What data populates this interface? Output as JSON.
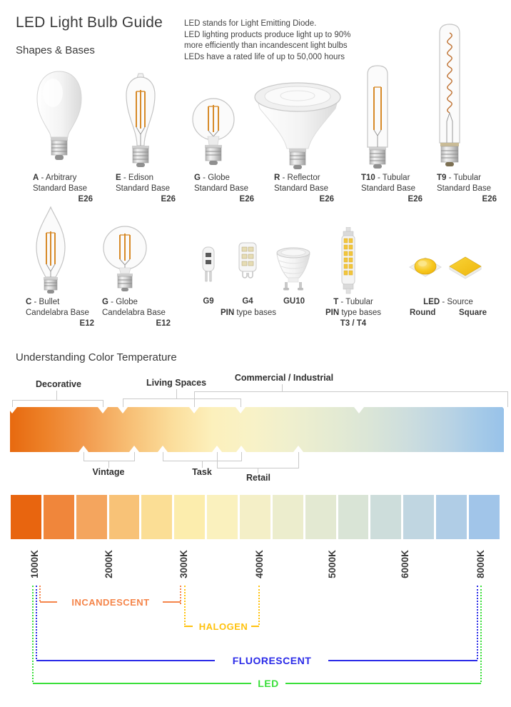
{
  "meta": {
    "sep": " - "
  },
  "header": {
    "title": "LED Light Bulb Guide",
    "subtitle": "Shapes & Bases",
    "description_lines": [
      "LED stands for Light Emitting Diode.",
      "LED lighting products produce light up to 90%",
      "more efficiently than incandescent light bulbs",
      "LEDs have a rated life of up to 50,000 hours"
    ]
  },
  "bulbs_row1": [
    {
      "code": "A",
      "name": "Arbitrary",
      "base": "Standard Base",
      "socket": "E26"
    },
    {
      "code": "E",
      "name": "Edison",
      "base": "Standard Base",
      "socket": "E26"
    },
    {
      "code": "G",
      "name": "Globe",
      "base": "Standard Base",
      "socket": "E26"
    },
    {
      "code": "R",
      "name": "Reflector",
      "base": "Standard Base",
      "socket": "E26"
    },
    {
      "code": "T10",
      "name": "Tubular",
      "base": "Standard Base",
      "socket": "E26"
    },
    {
      "code": "T9",
      "name": "Tubular",
      "base": "Standard Base",
      "socket": "E26"
    }
  ],
  "bulbs_row2": [
    {
      "code": "C",
      "name": "Bullet",
      "base": "Candelabra Base",
      "socket": "E12"
    },
    {
      "code": "G",
      "name": "Globe",
      "base": "Candelabra Base",
      "socket": "E12"
    }
  ],
  "pin_group": {
    "pins": [
      "G9",
      "G4",
      "GU10"
    ],
    "caption_bold": "PIN",
    "caption_rest": " type bases"
  },
  "t_group": {
    "code": "T",
    "name": "Tubular",
    "caption_bold": "PIN",
    "caption_rest": " type bases",
    "sizes": "T3 / T4"
  },
  "led_group": {
    "code": "LED",
    "name": "Source",
    "left": "Round",
    "right": "Square"
  },
  "color_temp": {
    "title": "Understanding Color Temperature",
    "top_labels": [
      "Decorative",
      "Living Spaces",
      "Commercial / Industrial"
    ],
    "bottom_labels": [
      "Vintage",
      "Task",
      "Retail"
    ],
    "kelvin_labels": [
      "1000K",
      "2000K",
      "3000K",
      "4000K",
      "5000K",
      "6000K",
      "8000K"
    ],
    "ranges": [
      {
        "label": "INCANDESCENT",
        "color": "#F5854A"
      },
      {
        "label": "HALOGEN",
        "color": "#FFC20E"
      },
      {
        "label": "FLUORESCENT",
        "color": "#2A2AE8"
      },
      {
        "label": "LED",
        "color": "#3ADF3A"
      }
    ],
    "gradient_stops": [
      "#E7690F 0%",
      "#ED8128 7%",
      "#F29A4D 15%",
      "#F7BE74 24%",
      "#FBDE9C 33%",
      "#FCF0BC 41%",
      "#F8F2C7 49%",
      "#EFEFCE 57%",
      "#E5EBD2 65%",
      "#DAE5D7 73%",
      "#CCDDDE 81%",
      "#B9D3E4 89%",
      "#A5CAE8 95%",
      "#98C2E9 100%"
    ],
    "segment_colors": [
      "#E8650F",
      "#F0863B",
      "#F4A55E",
      "#F8C277",
      "#FBDE95",
      "#FCEDAD",
      "#FAF1BE",
      "#F4EFC7",
      "#ECEDCD",
      "#E3E9D2",
      "#D9E4D6",
      "#CDDDDB",
      "#C0D6E1",
      "#B0CDE6",
      "#A1C5E9"
    ]
  }
}
